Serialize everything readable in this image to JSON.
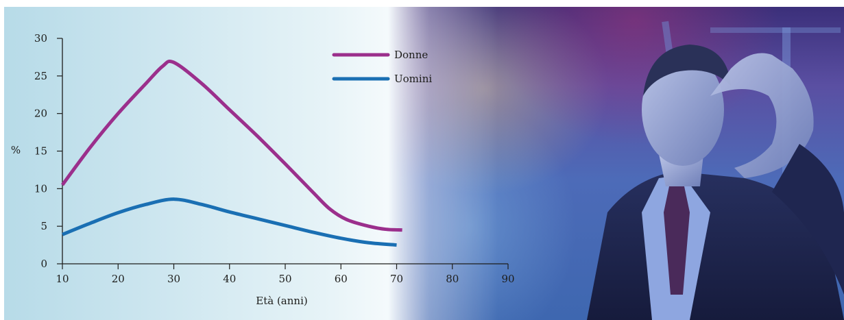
{
  "chart_data": {
    "type": "line",
    "title": "",
    "xlabel": "Età (anni)",
    "ylabel": "%",
    "xlim": [
      10,
      90
    ],
    "ylim": [
      0,
      30
    ],
    "x_ticks": [
      10,
      20,
      30,
      40,
      50,
      60,
      70,
      80,
      90
    ],
    "y_ticks": [
      0,
      5,
      10,
      15,
      20,
      25,
      30
    ],
    "grid": false,
    "legend_position": "top-right",
    "series": [
      {
        "name": "Donne",
        "color": "#9b2f8c",
        "x": [
          10,
          15,
          20,
          25,
          28,
          30,
          35,
          40,
          45,
          50,
          55,
          58,
          61,
          65,
          68,
          71
        ],
        "values": [
          10.5,
          15.5,
          20.0,
          24.0,
          26.3,
          26.8,
          24.0,
          20.5,
          17.0,
          13.3,
          9.5,
          7.3,
          5.9,
          5.0,
          4.6,
          4.5
        ]
      },
      {
        "name": "Uomini",
        "color": "#1a6fb3",
        "x": [
          10,
          15,
          20,
          25,
          30,
          35,
          40,
          45,
          50,
          55,
          60,
          65,
          70
        ],
        "values": [
          3.9,
          5.4,
          6.8,
          7.9,
          8.6,
          7.9,
          6.9,
          6.0,
          5.1,
          4.2,
          3.4,
          2.8,
          2.5
        ]
      }
    ]
  },
  "photo": {
    "description_icon": "stressed-man-photo"
  }
}
